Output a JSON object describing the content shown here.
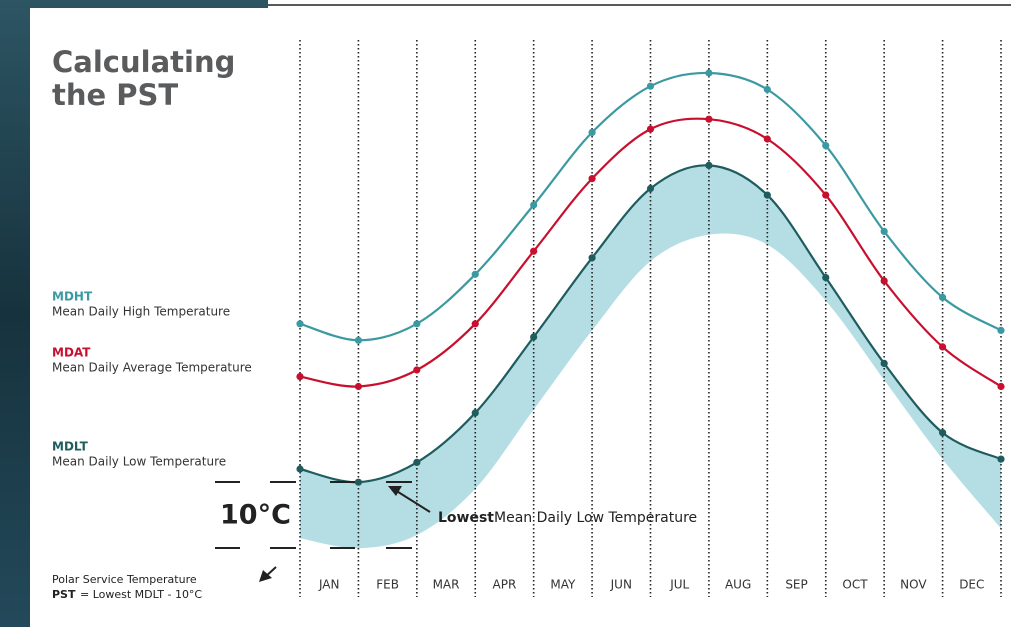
{
  "chart_data": {
    "type": "line",
    "title": "Calculating the PST",
    "categories": [
      "JAN",
      "FEB",
      "MAR",
      "APR",
      "MAY",
      "JUN",
      "JUL",
      "AUG",
      "SEP",
      "OCT",
      "NOV",
      "DEC"
    ],
    "x": [
      0,
      1,
      2,
      3,
      4,
      5,
      6,
      7,
      8,
      9,
      10,
      11,
      12
    ],
    "xlim": [
      0,
      12
    ],
    "ylim": [
      -10,
      70
    ],
    "series": [
      {
        "name": "MDHT",
        "description": "Mean Daily High Temperature",
        "color": "#3b9aa1",
        "values": [
          27,
          24.5,
          27,
          34.5,
          45,
          56,
          63,
          65,
          62.5,
          54,
          41,
          31,
          26
        ]
      },
      {
        "name": "MDAT",
        "description": "Mean Daily Average Temperature",
        "color": "#c8102e",
        "values": [
          19,
          17.5,
          20,
          27,
          38,
          49,
          56.5,
          58,
          55,
          46.5,
          33.5,
          23.5,
          17.5
        ]
      },
      {
        "name": "MDLT",
        "description": "Mean Daily Low Temperature",
        "color": "#1f5c5e",
        "values": [
          5,
          3,
          6,
          13.5,
          25,
          37,
          47.5,
          51,
          46.5,
          34,
          21,
          10.5,
          6.5
        ]
      }
    ],
    "band": {
      "color": "#b5dee4",
      "values": [
        -5.5,
        -7,
        -5,
        2,
        14,
        26,
        36.5,
        40.5,
        39,
        30.5,
        18.5,
        6.5,
        -4
      ]
    },
    "offset_label": "10°C",
    "annotation_bold": "Lowest",
    "annotation": "Mean Daily Low Temperature",
    "footnote": "Polar Service Temperature",
    "footnote_bold": "PST",
    "footnote_formula": "= Lowest MDLT - 10°C"
  }
}
